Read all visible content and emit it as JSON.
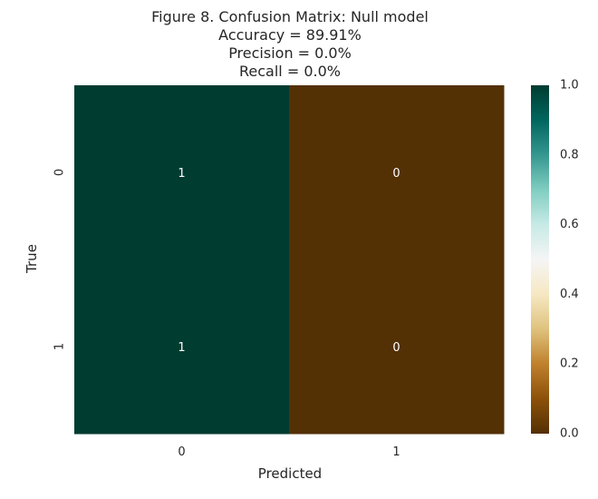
{
  "chart_data": {
    "type": "heatmap",
    "title_lines": [
      "Figure 8. Confusion Matrix: Null model",
      "Accuracy = 89.91%",
      "Precision = 0.0%",
      "Recall = 0.0%"
    ],
    "xlabel": "Predicted",
    "ylabel": "True",
    "x_categories": [
      "0",
      "1"
    ],
    "y_categories": [
      "0",
      "1"
    ],
    "values": [
      [
        1,
        0
      ],
      [
        1,
        0
      ]
    ],
    "cell_labels": [
      [
        "1",
        "0"
      ],
      [
        "1",
        "0"
      ]
    ],
    "colorscale": "BrBG",
    "colorbar": {
      "range": [
        0.0,
        1.0
      ],
      "ticks": [
        "0.0",
        "0.2",
        "0.4",
        "0.6",
        "0.8",
        "1.0"
      ],
      "tick_values": [
        0.0,
        0.2,
        0.4,
        0.6,
        0.8,
        1.0
      ]
    },
    "colors": {
      "max": "#003c30",
      "min": "#543005",
      "text": "#ffffff"
    }
  }
}
